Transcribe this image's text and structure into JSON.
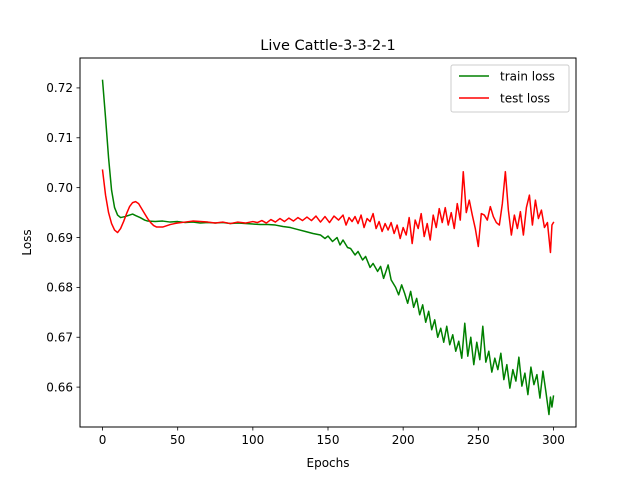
{
  "chart_data": {
    "type": "line",
    "title": "Live Cattle-3-3-2-1",
    "xlabel": "Epochs",
    "ylabel": "Loss",
    "xlim": [
      -15,
      315
    ],
    "ylim": [
      0.652,
      0.726
    ],
    "xticks": [
      0,
      50,
      100,
      150,
      200,
      250,
      300
    ],
    "yticks": [
      0.66,
      0.67,
      0.68,
      0.69,
      0.7,
      0.71,
      0.72
    ],
    "ytick_labels": [
      "0.66",
      "0.67",
      "0.68",
      "0.69",
      "0.70",
      "0.71",
      "0.72"
    ],
    "legend_position": "top-right",
    "grid": false,
    "series": [
      {
        "name": "train loss",
        "color": "#008000",
        "points": [
          [
            0,
            0.7215
          ],
          [
            2,
            0.714
          ],
          [
            4,
            0.706
          ],
          [
            6,
            0.6995
          ],
          [
            8,
            0.696
          ],
          [
            10,
            0.6945
          ],
          [
            12,
            0.694
          ],
          [
            15,
            0.6942
          ],
          [
            18,
            0.6945
          ],
          [
            20,
            0.6947
          ],
          [
            22,
            0.6944
          ],
          [
            25,
            0.694
          ],
          [
            28,
            0.6935
          ],
          [
            30,
            0.6933
          ],
          [
            35,
            0.6932
          ],
          [
            40,
            0.6933
          ],
          [
            45,
            0.6931
          ],
          [
            50,
            0.6932
          ],
          [
            55,
            0.693
          ],
          [
            60,
            0.6931
          ],
          [
            65,
            0.6929
          ],
          [
            70,
            0.693
          ],
          [
            75,
            0.6929
          ],
          [
            80,
            0.693
          ],
          [
            85,
            0.6928
          ],
          [
            90,
            0.6929
          ],
          [
            95,
            0.6928
          ],
          [
            100,
            0.6927
          ],
          [
            105,
            0.6926
          ],
          [
            110,
            0.6926
          ],
          [
            115,
            0.6925
          ],
          [
            120,
            0.6922
          ],
          [
            125,
            0.692
          ],
          [
            130,
            0.6916
          ],
          [
            135,
            0.6912
          ],
          [
            140,
            0.6908
          ],
          [
            145,
            0.6905
          ],
          [
            148,
            0.6898
          ],
          [
            150,
            0.6903
          ],
          [
            153,
            0.6892
          ],
          [
            156,
            0.69
          ],
          [
            158,
            0.6885
          ],
          [
            160,
            0.6895
          ],
          [
            163,
            0.688
          ],
          [
            165,
            0.6878
          ],
          [
            168,
            0.6865
          ],
          [
            170,
            0.6872
          ],
          [
            173,
            0.6855
          ],
          [
            175,
            0.6862
          ],
          [
            178,
            0.684
          ],
          [
            180,
            0.6848
          ],
          [
            183,
            0.6832
          ],
          [
            185,
            0.6842
          ],
          [
            187,
            0.6818
          ],
          [
            190,
            0.6845
          ],
          [
            192,
            0.6815
          ],
          [
            195,
            0.68
          ],
          [
            197,
            0.6785
          ],
          [
            199,
            0.6805
          ],
          [
            201,
            0.6788
          ],
          [
            203,
            0.6768
          ],
          [
            205,
            0.6792
          ],
          [
            207,
            0.676
          ],
          [
            209,
            0.6778
          ],
          [
            211,
            0.6745
          ],
          [
            213,
            0.6765
          ],
          [
            215,
            0.673
          ],
          [
            217,
            0.6752
          ],
          [
            219,
            0.6715
          ],
          [
            221,
            0.6735
          ],
          [
            223,
            0.67
          ],
          [
            225,
            0.6718
          ],
          [
            227,
            0.669
          ],
          [
            229,
            0.6722
          ],
          [
            231,
            0.6685
          ],
          [
            233,
            0.6705
          ],
          [
            235,
            0.6672
          ],
          [
            237,
            0.6692
          ],
          [
            239,
            0.6658
          ],
          [
            241,
            0.6728
          ],
          [
            243,
            0.6662
          ],
          [
            245,
            0.67
          ],
          [
            247,
            0.6645
          ],
          [
            249,
            0.669
          ],
          [
            251,
            0.6655
          ],
          [
            253,
            0.6722
          ],
          [
            255,
            0.665
          ],
          [
            257,
            0.6672
          ],
          [
            259,
            0.663
          ],
          [
            261,
            0.6658
          ],
          [
            263,
            0.6635
          ],
          [
            265,
            0.6668
          ],
          [
            267,
            0.6615
          ],
          [
            269,
            0.6645
          ],
          [
            271,
            0.6598
          ],
          [
            273,
            0.6635
          ],
          [
            275,
            0.6612
          ],
          [
            277,
            0.666
          ],
          [
            279,
            0.6602
          ],
          [
            281,
            0.6628
          ],
          [
            283,
            0.6585
          ],
          [
            285,
            0.664
          ],
          [
            287,
            0.6605
          ],
          [
            289,
            0.6625
          ],
          [
            291,
            0.6578
          ],
          [
            293,
            0.6632
          ],
          [
            295,
            0.659
          ],
          [
            297,
            0.6545
          ],
          [
            298,
            0.658
          ],
          [
            299,
            0.656
          ],
          [
            300,
            0.6582
          ]
        ]
      },
      {
        "name": "test loss",
        "color": "#ff0000",
        "points": [
          [
            0,
            0.7035
          ],
          [
            2,
            0.6985
          ],
          [
            4,
            0.695
          ],
          [
            6,
            0.6928
          ],
          [
            8,
            0.6915
          ],
          [
            10,
            0.691
          ],
          [
            12,
            0.6918
          ],
          [
            14,
            0.6932
          ],
          [
            16,
            0.6948
          ],
          [
            18,
            0.6962
          ],
          [
            20,
            0.697
          ],
          [
            22,
            0.6972
          ],
          [
            24,
            0.6968
          ],
          [
            26,
            0.6958
          ],
          [
            28,
            0.6948
          ],
          [
            30,
            0.6938
          ],
          [
            32,
            0.693
          ],
          [
            34,
            0.6924
          ],
          [
            36,
            0.6921
          ],
          [
            38,
            0.6921
          ],
          [
            40,
            0.6921
          ],
          [
            42,
            0.6923
          ],
          [
            45,
            0.6926
          ],
          [
            48,
            0.6928
          ],
          [
            50,
            0.6929
          ],
          [
            55,
            0.6931
          ],
          [
            60,
            0.6933
          ],
          [
            65,
            0.6932
          ],
          [
            70,
            0.6931
          ],
          [
            75,
            0.6929
          ],
          [
            80,
            0.6931
          ],
          [
            85,
            0.6928
          ],
          [
            90,
            0.6931
          ],
          [
            95,
            0.6929
          ],
          [
            100,
            0.6932
          ],
          [
            103,
            0.693
          ],
          [
            106,
            0.6934
          ],
          [
            109,
            0.6929
          ],
          [
            112,
            0.6936
          ],
          [
            115,
            0.6931
          ],
          [
            118,
            0.6938
          ],
          [
            121,
            0.6932
          ],
          [
            124,
            0.6939
          ],
          [
            127,
            0.6933
          ],
          [
            130,
            0.694
          ],
          [
            133,
            0.6934
          ],
          [
            136,
            0.6941
          ],
          [
            139,
            0.6934
          ],
          [
            142,
            0.6943
          ],
          [
            145,
            0.6931
          ],
          [
            148,
            0.6942
          ],
          [
            151,
            0.693
          ],
          [
            154,
            0.6943
          ],
          [
            157,
            0.6935
          ],
          [
            160,
            0.6945
          ],
          [
            162,
            0.6925
          ],
          [
            164,
            0.694
          ],
          [
            166,
            0.6932
          ],
          [
            168,
            0.6942
          ],
          [
            170,
            0.6928
          ],
          [
            172,
            0.6945
          ],
          [
            174,
            0.692
          ],
          [
            176,
            0.6938
          ],
          [
            178,
            0.6932
          ],
          [
            180,
            0.6948
          ],
          [
            182,
            0.6918
          ],
          [
            184,
            0.6932
          ],
          [
            186,
            0.6912
          ],
          [
            188,
            0.6928
          ],
          [
            190,
            0.6915
          ],
          [
            192,
            0.693
          ],
          [
            194,
            0.6908
          ],
          [
            196,
            0.6925
          ],
          [
            198,
            0.6898
          ],
          [
            200,
            0.692
          ],
          [
            202,
            0.6905
          ],
          [
            204,
            0.694
          ],
          [
            206,
            0.6888
          ],
          [
            208,
            0.6935
          ],
          [
            210,
            0.6918
          ],
          [
            212,
            0.6948
          ],
          [
            214,
            0.6902
          ],
          [
            216,
            0.6928
          ],
          [
            218,
            0.6895
          ],
          [
            220,
            0.6945
          ],
          [
            222,
            0.692
          ],
          [
            224,
            0.6958
          ],
          [
            226,
            0.693
          ],
          [
            228,
            0.696
          ],
          [
            230,
            0.6925
          ],
          [
            232,
            0.695
          ],
          [
            234,
            0.6918
          ],
          [
            236,
            0.6968
          ],
          [
            238,
            0.6935
          ],
          [
            240,
            0.7032
          ],
          [
            242,
            0.695
          ],
          [
            244,
            0.6975
          ],
          [
            246,
            0.6945
          ],
          [
            248,
            0.6918
          ],
          [
            250,
            0.6882
          ],
          [
            252,
            0.6948
          ],
          [
            254,
            0.6945
          ],
          [
            256,
            0.6935
          ],
          [
            258,
            0.6962
          ],
          [
            260,
            0.6942
          ],
          [
            262,
            0.693
          ],
          [
            264,
            0.6925
          ],
          [
            266,
            0.6968
          ],
          [
            268,
            0.7032
          ],
          [
            270,
            0.6955
          ],
          [
            272,
            0.6905
          ],
          [
            274,
            0.6945
          ],
          [
            276,
            0.6918
          ],
          [
            278,
            0.6952
          ],
          [
            280,
            0.6905
          ],
          [
            282,
            0.696
          ],
          [
            284,
            0.6985
          ],
          [
            286,
            0.6925
          ],
          [
            288,
            0.6975
          ],
          [
            290,
            0.6938
          ],
          [
            292,
            0.6955
          ],
          [
            294,
            0.692
          ],
          [
            296,
            0.693
          ],
          [
            298,
            0.687
          ],
          [
            299,
            0.6925
          ],
          [
            300,
            0.693
          ]
        ]
      }
    ]
  }
}
